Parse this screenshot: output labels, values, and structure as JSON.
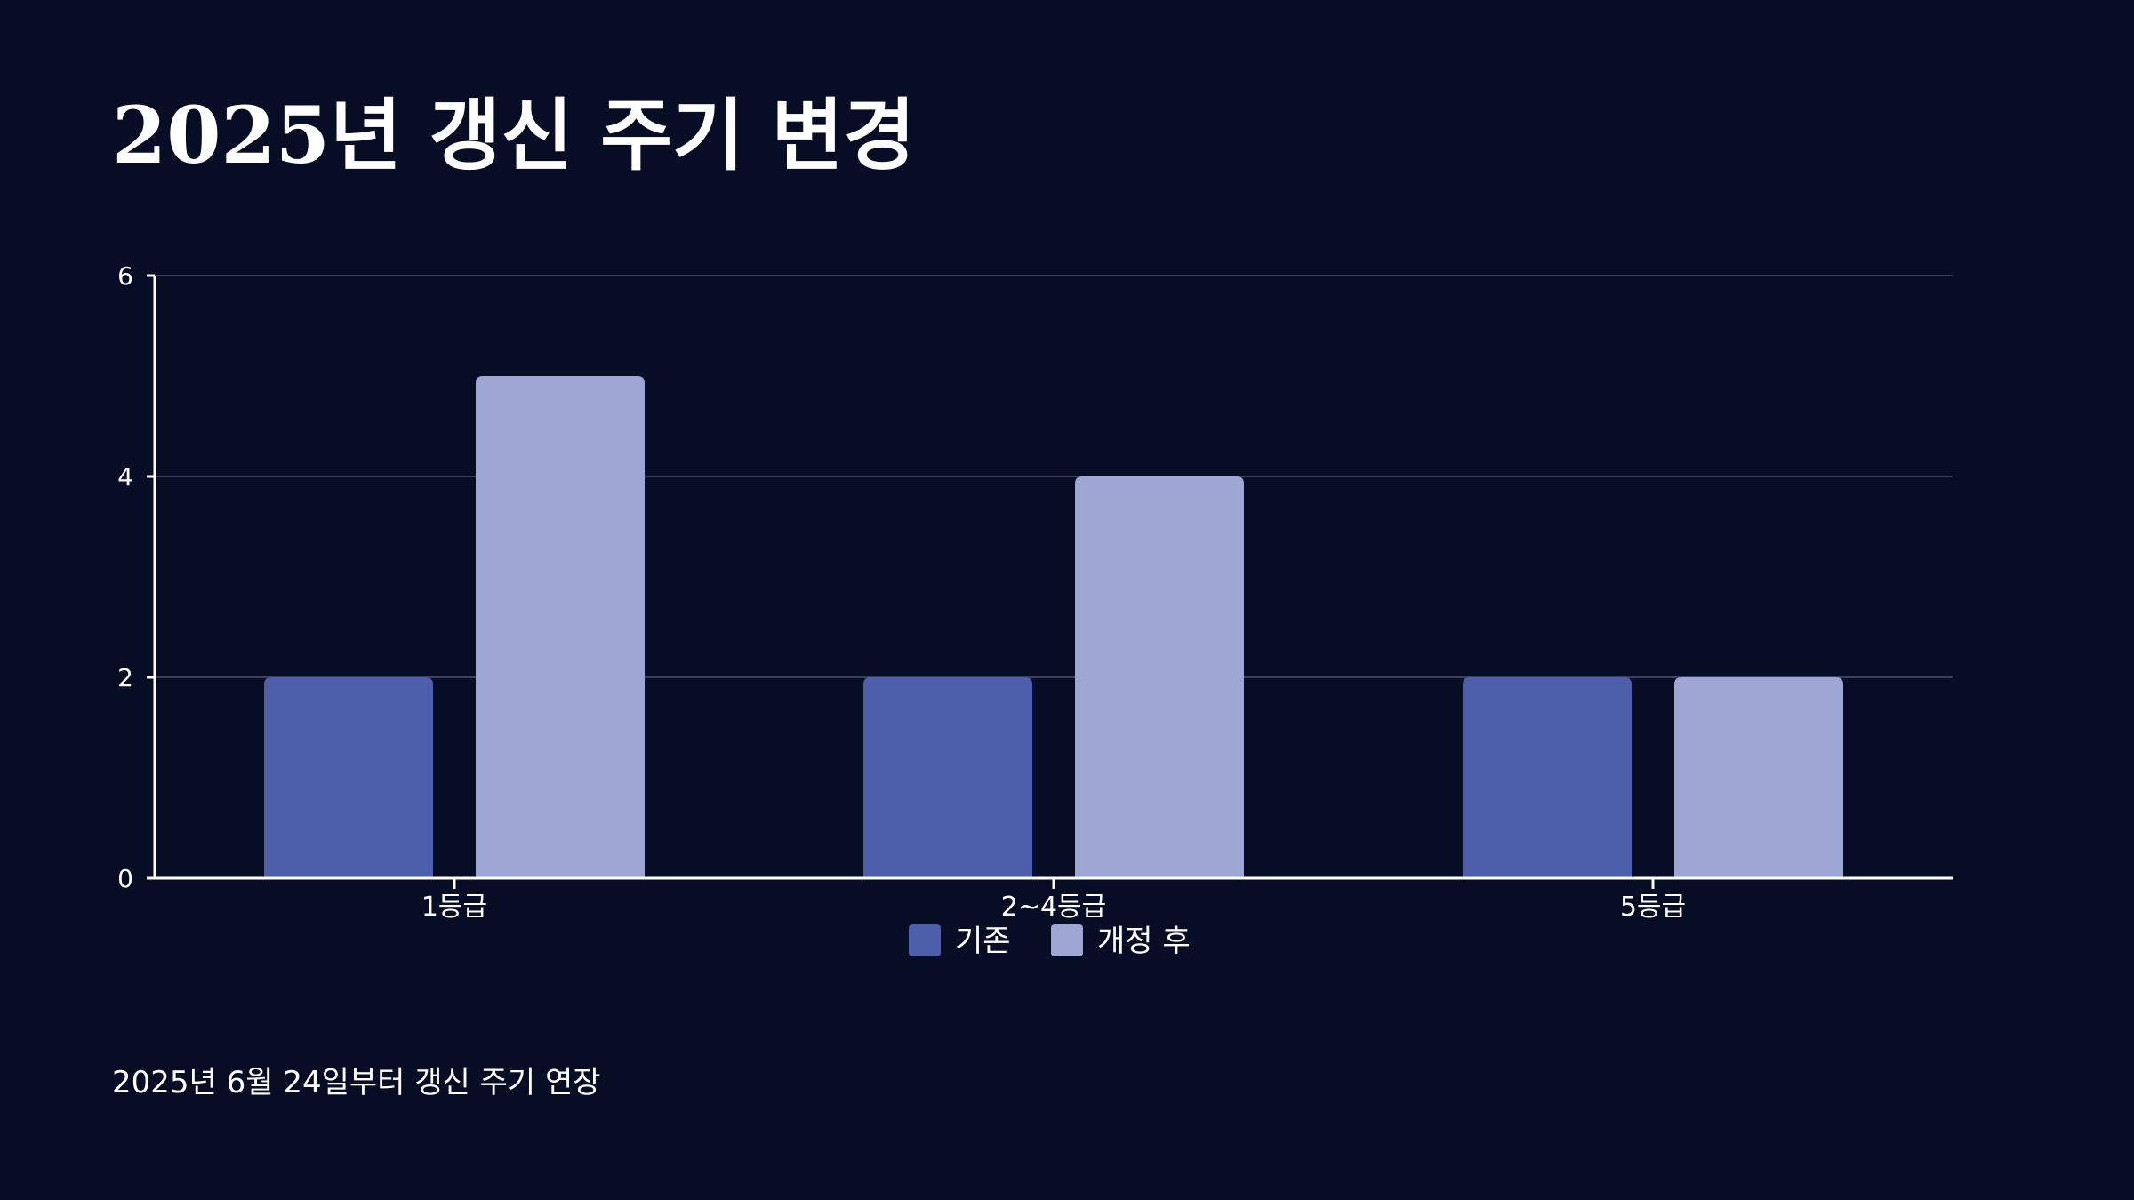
{
  "slide": {
    "title": "2025년 갱신 주기 변경",
    "footnote": "2025년 6월 24일부터 갱신 주기 연장"
  },
  "colors": {
    "background": "#070d25",
    "text": "#ffffff",
    "gridline": "#3a4058",
    "series_before": "#4d5fab",
    "series_after": "#9ea7d3"
  },
  "chart_data": {
    "type": "bar",
    "title": "",
    "xlabel": "",
    "ylabel": "",
    "categories": [
      "1등급",
      "2~4등급",
      "5등급"
    ],
    "series": [
      {
        "name": "기존",
        "values": [
          2,
          2,
          2
        ]
      },
      {
        "name": "개정 후",
        "values": [
          5,
          4,
          2
        ]
      }
    ],
    "ylim": [
      0,
      6
    ],
    "yticks": [
      0,
      2,
      4,
      6
    ],
    "grid": true,
    "legend": "bottom-center"
  }
}
